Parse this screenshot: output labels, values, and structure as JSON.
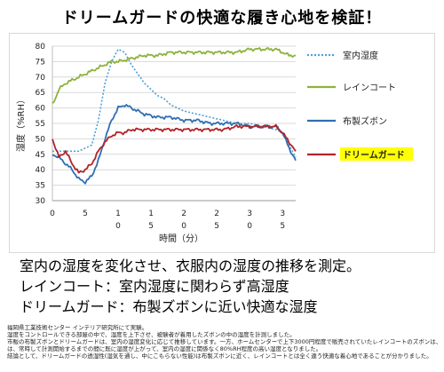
{
  "title": "ドリームガードの快適な履き心地を検証！",
  "summary": [
    "室内の湿度を変化させ、衣服内の湿度の推移を測定。",
    "レインコート：室内湿度に関わらず高湿度",
    "ドリームガード：布製ズボンに近い快適な湿度"
  ],
  "notes": [
    "福岡県工業技術センター インテリア研究所にて実験。",
    "湿度をコントロールできる部屋の中で、湿度を上下させ、被験者が着用したズボンの中の湿度を計測しました。",
    "市販の布製ズボンとドリームガードは、室内の湿度変化に応じて推移しています。一方、ホームセンターで上下3000円程度で販売されていたレインコートのズボンは、",
    "は、常時して計測開始するまでの間に既に湿度が上がって、室内の湿度に関係なく80%RH程度の高い湿度となりました。",
    "結論として、ドリームガードの透湿性(湿気を通し、中にこもらない性能)は布製ズボンに近く、レインコートとは全く違う快適な着心地であることが分かりました。"
  ],
  "colors": {
    "room": "#4f9fd6",
    "raincoat": "#8db23a",
    "cotton": "#2f6fb3",
    "dreamguard": "#b0242a",
    "highlight": "#ffff00"
  },
  "chart_data": {
    "type": "line",
    "ylabel": "湿度（%RH）",
    "xlabel": "時間（分）",
    "ylim": [
      30,
      80
    ],
    "xlim": [
      0,
      37
    ],
    "yticks": [
      30,
      35,
      40,
      45,
      50,
      55,
      60,
      65,
      70,
      75,
      80
    ],
    "xtick_labels": [
      {
        "x": 0,
        "top": "0",
        "bottom": ""
      },
      {
        "x": 5,
        "top": "5",
        "bottom": ""
      },
      {
        "x": 10,
        "top": "1",
        "bottom": "0"
      },
      {
        "x": 15,
        "top": "1",
        "bottom": "5"
      },
      {
        "x": 20,
        "top": "2",
        "bottom": "0"
      },
      {
        "x": 25,
        "top": "2",
        "bottom": "5"
      },
      {
        "x": 30,
        "top": "3",
        "bottom": "0"
      },
      {
        "x": 35,
        "top": "3",
        "bottom": "5"
      }
    ],
    "series": [
      {
        "name": "室内湿度",
        "key": "room",
        "dash": true,
        "x": [
          0,
          2,
          4,
          5,
          6,
          7,
          8,
          9,
          10,
          11,
          12,
          13,
          14,
          15,
          16,
          17,
          18,
          19,
          20,
          22,
          24,
          26,
          28,
          30,
          32,
          34,
          35,
          36,
          37
        ],
        "y": [
          46,
          46,
          46,
          47,
          48,
          56,
          68,
          75,
          79,
          78,
          74,
          71,
          68,
          66,
          64,
          63,
          61,
          60,
          59,
          58,
          57,
          56,
          55,
          55,
          54,
          53,
          52,
          48,
          44
        ]
      },
      {
        "name": "レインコート",
        "key": "raincoat",
        "x": [
          0,
          1,
          2,
          3,
          4,
          5,
          6,
          7,
          8,
          9,
          10,
          12,
          14,
          16,
          18,
          20,
          22,
          24,
          26,
          28,
          30,
          32,
          34,
          35,
          36,
          37
        ],
        "y": [
          61,
          66,
          68,
          69,
          70,
          71,
          72,
          73,
          74,
          75,
          75,
          76,
          77,
          77,
          78,
          78,
          78,
          78,
          78,
          78,
          79,
          79,
          79,
          78,
          77,
          77
        ]
      },
      {
        "name": "布製ズボン",
        "key": "cotton",
        "x": [
          0,
          1,
          2,
          3,
          4,
          5,
          6,
          7,
          8,
          9,
          10,
          11,
          12,
          13,
          14,
          16,
          18,
          20,
          22,
          24,
          26,
          28,
          30,
          32,
          34,
          35,
          36,
          37
        ],
        "y": [
          45,
          44,
          42,
          40,
          37,
          36,
          38,
          43,
          50,
          56,
          60,
          61,
          60,
          59,
          58,
          57,
          57,
          56,
          56,
          55,
          55,
          55,
          54,
          54,
          54,
          52,
          47,
          43
        ]
      },
      {
        "name": "ドリームガード",
        "key": "dreamguard",
        "x": [
          0,
          1,
          2,
          3,
          4,
          5,
          6,
          7,
          8,
          9,
          10,
          11,
          12,
          14,
          16,
          18,
          20,
          22,
          24,
          26,
          28,
          30,
          32,
          34,
          35,
          36,
          37
        ],
        "y": [
          50,
          44,
          46,
          42,
          39,
          40,
          42,
          46,
          49,
          51,
          52,
          52,
          53,
          53,
          53,
          53,
          53,
          53,
          53,
          53,
          54,
          54,
          54,
          54,
          52,
          49,
          46
        ]
      }
    ]
  }
}
